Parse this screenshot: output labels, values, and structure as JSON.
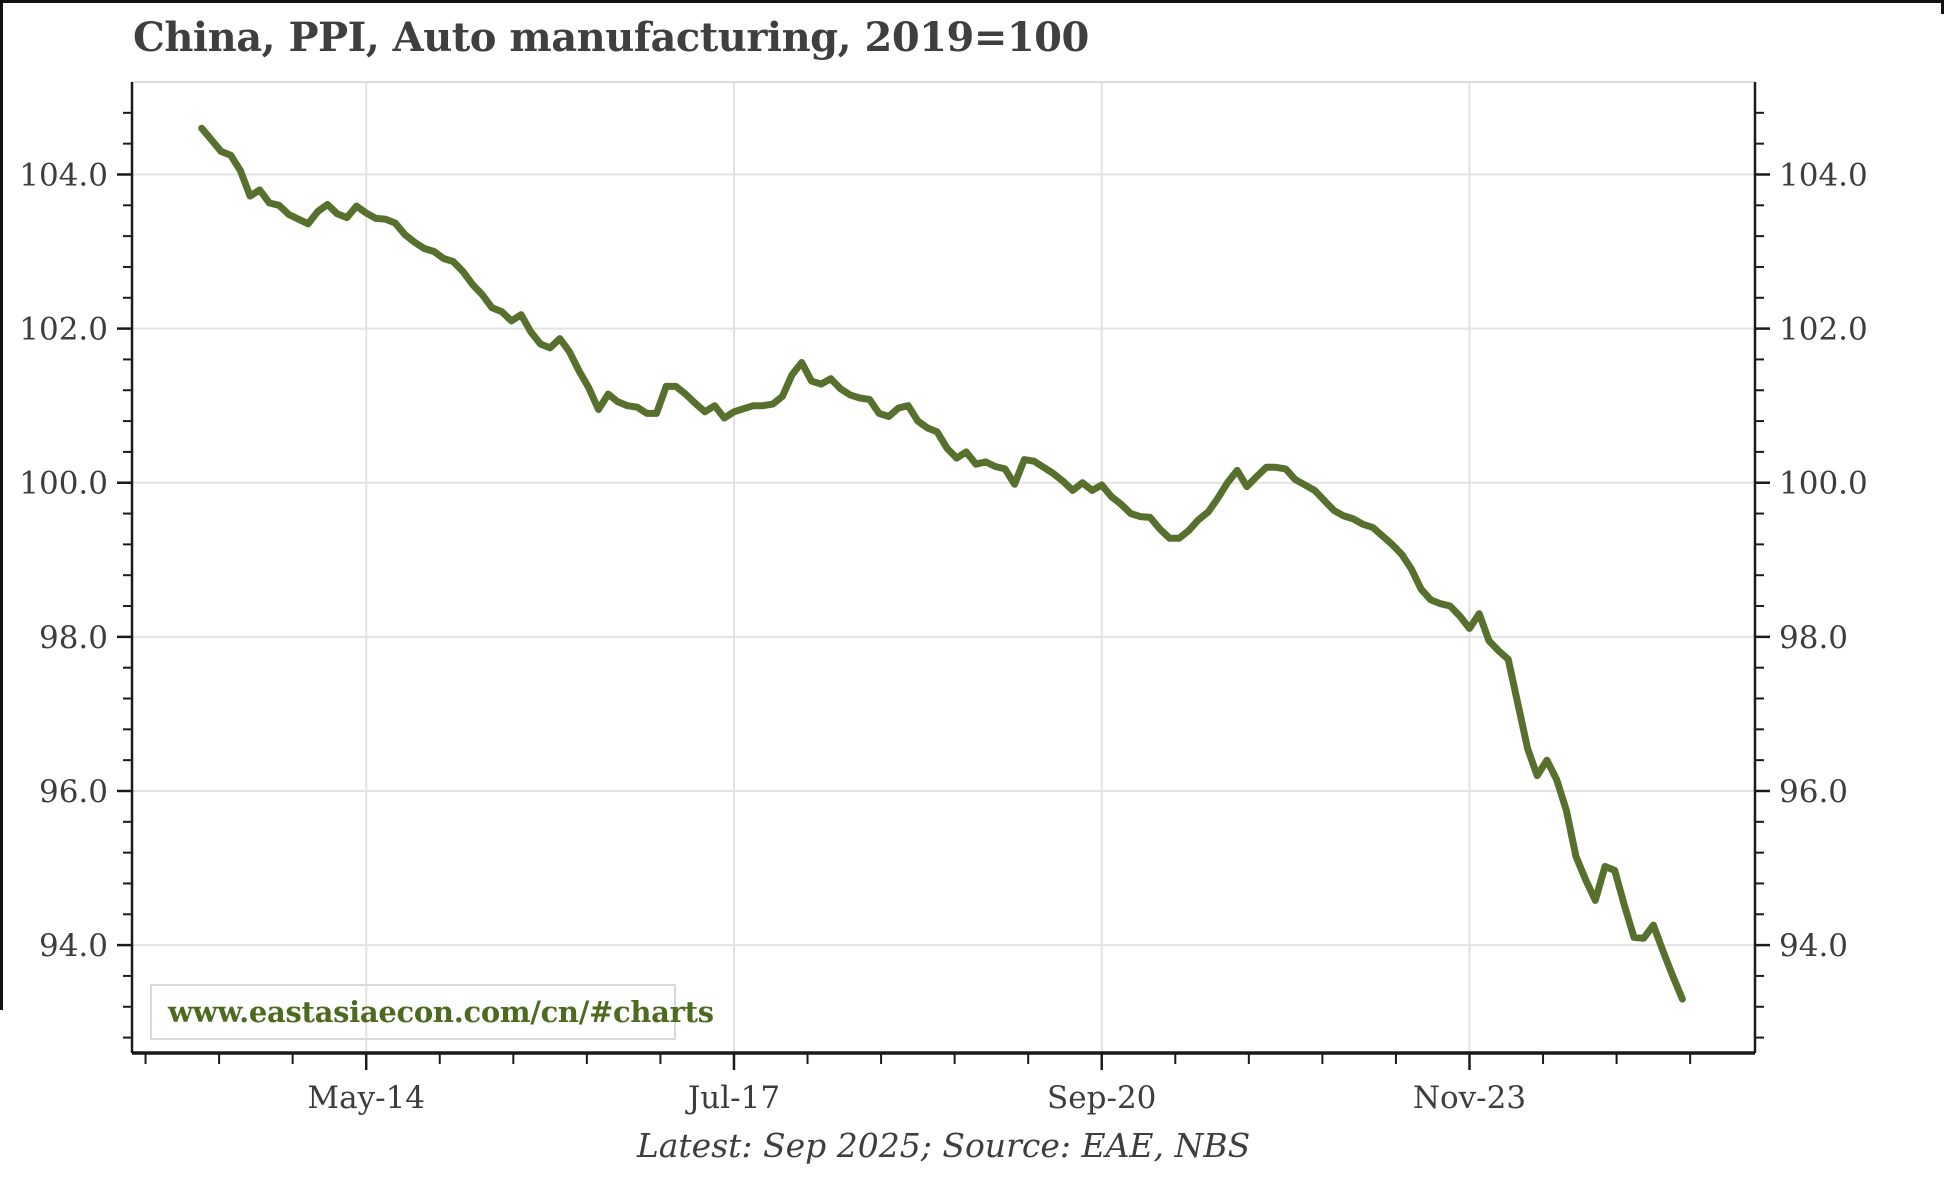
{
  "page": {
    "title": "China, PPI, Auto manufacturing, 2019=100",
    "footer": "Latest: Sep 2025; Source: EAE, NBS",
    "watermark": "www.eastasiaecon.com/cn/#charts"
  },
  "colors": {
    "line": "#58702e",
    "grid": "#e2e2e2",
    "axis": "#1a1a1a",
    "top_spine": "#dcdcdc",
    "text": "#3d3d3d",
    "watermark_text": "#4e6a20",
    "watermark_border": "#d9d9d9",
    "background": "#ffffff"
  },
  "chart_data": {
    "type": "line",
    "title": "China, PPI, Auto manufacturing, 2019=100",
    "xlabel": "",
    "ylabel": "",
    "x_start": "Dec-2012",
    "x_end": "Sep-2025",
    "frequency": "monthly",
    "latest_note": "Latest: Sep 2025; Source: EAE, NBS",
    "grid": true,
    "legend": "none",
    "ylim": [
      92.6,
      105.2
    ],
    "xlim_index": [
      -7.2,
      160.5
    ],
    "yticks": [
      94,
      96,
      98,
      100,
      102,
      104
    ],
    "ytick_labels": [
      "94.0",
      "96.0",
      "98.0",
      "100.0",
      "102.0",
      "104.0"
    ],
    "y_minor_step": 0.4,
    "xticks_index": [
      17,
      55,
      93,
      131
    ],
    "xtick_labels": [
      "May-14",
      "Jul-17",
      "Sep-20",
      "Nov-23"
    ],
    "x_minor_step_months": 7.6,
    "values": [
      104.6,
      104.45,
      104.3,
      104.25,
      104.05,
      103.72,
      103.8,
      103.63,
      103.6,
      103.48,
      103.42,
      103.36,
      103.52,
      103.61,
      103.49,
      103.44,
      103.59,
      103.5,
      103.43,
      103.42,
      103.37,
      103.22,
      103.12,
      103.04,
      103.0,
      102.91,
      102.87,
      102.74,
      102.57,
      102.44,
      102.27,
      102.22,
      102.1,
      102.18,
      101.96,
      101.8,
      101.75,
      101.87,
      101.7,
      101.45,
      101.23,
      100.95,
      101.15,
      101.05,
      101.0,
      100.98,
      100.9,
      100.9,
      101.25,
      101.25,
      101.15,
      101.03,
      100.92,
      101.0,
      100.84,
      100.92,
      100.96,
      101.0,
      101.0,
      101.02,
      101.12,
      101.4,
      101.56,
      101.32,
      101.28,
      101.35,
      101.22,
      101.14,
      101.1,
      101.08,
      100.9,
      100.86,
      100.97,
      101.0,
      100.8,
      100.71,
      100.66,
      100.45,
      100.32,
      100.4,
      100.24,
      100.27,
      100.21,
      100.18,
      99.98,
      100.3,
      100.28,
      100.2,
      100.12,
      100.02,
      99.9,
      100.0,
      99.9,
      99.97,
      99.82,
      99.72,
      99.6,
      99.56,
      99.55,
      99.4,
      99.28,
      99.28,
      99.38,
      99.52,
      99.62,
      99.8,
      100.0,
      100.16,
      99.95,
      100.08,
      100.2,
      100.2,
      100.18,
      100.04,
      99.97,
      99.9,
      99.77,
      99.64,
      99.57,
      99.53,
      99.46,
      99.42,
      99.31,
      99.2,
      99.07,
      98.88,
      98.62,
      98.48,
      98.43,
      98.4,
      98.27,
      98.11,
      98.3,
      97.95,
      97.82,
      97.71,
      97.13,
      96.55,
      96.2,
      96.4,
      96.15,
      95.75,
      95.15,
      94.85,
      94.58,
      95.02,
      94.97,
      94.52,
      94.1,
      94.09,
      94.26,
      93.92,
      93.6,
      93.3
    ]
  }
}
